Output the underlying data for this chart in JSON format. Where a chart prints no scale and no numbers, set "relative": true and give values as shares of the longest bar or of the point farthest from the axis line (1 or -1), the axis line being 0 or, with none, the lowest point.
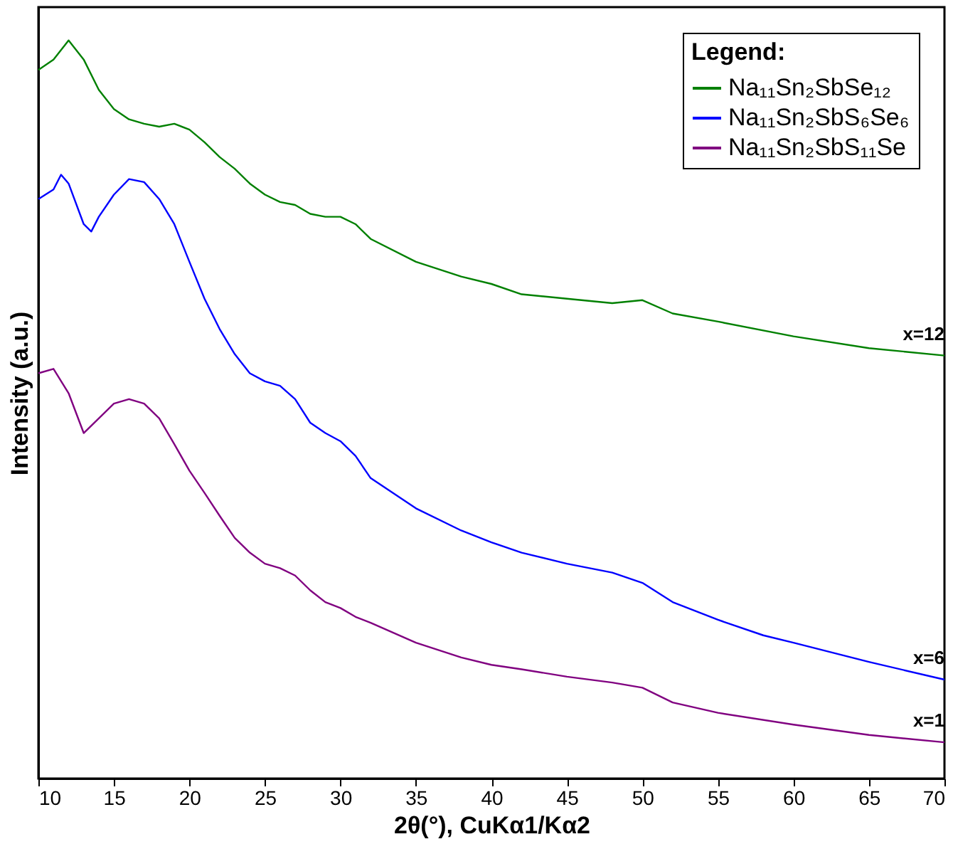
{
  "chart_data": {
    "type": "line",
    "relative": true,
    "xlabel": "2θ(°), CuKα1/Kα2",
    "ylabel": "Intensity (a.u.)",
    "legend_title": "Legend:",
    "legend": "top right",
    "grid": false,
    "tick_labels": "x",
    "marker": "none",
    "line_style": "solid",
    "xlim": [
      10,
      70
    ],
    "xticks": [
      10,
      15,
      20,
      25,
      30,
      35,
      40,
      45,
      50,
      55,
      60,
      65,
      70
    ],
    "series": [
      {
        "name": "Na₁₁Sn₂SbSe₁₂",
        "color": "#008000",
        "x": [
          10,
          11,
          12,
          13,
          14,
          15,
          16,
          17,
          18,
          19,
          20,
          21,
          22,
          23,
          24,
          25,
          26,
          27,
          28,
          29,
          30,
          31,
          32,
          35,
          38,
          40,
          42,
          45,
          48,
          50,
          52,
          55,
          60,
          65,
          70
        ],
        "values": [
          0.96,
          0.974,
          1.0,
          0.974,
          0.933,
          0.907,
          0.893,
          0.887,
          0.883,
          0.887,
          0.879,
          0.862,
          0.842,
          0.826,
          0.806,
          0.791,
          0.781,
          0.777,
          0.765,
          0.761,
          0.761,
          0.751,
          0.731,
          0.7,
          0.68,
          0.67,
          0.656,
          0.65,
          0.644,
          0.648,
          0.63,
          0.619,
          0.599,
          0.583,
          0.573
        ]
      },
      {
        "name": "Na₁₁Sn₂SbS₆Se₆",
        "color": "#0000ff",
        "x": [
          10,
          11,
          11.5,
          12,
          13,
          13.5,
          14,
          15,
          16,
          17,
          18,
          19,
          20,
          21,
          22,
          23,
          24,
          25,
          26,
          27,
          28,
          29,
          30,
          31,
          32,
          35,
          38,
          40,
          42,
          45,
          48,
          50,
          52,
          55,
          58,
          60,
          65,
          70
        ],
        "values": [
          0.785,
          0.798,
          0.818,
          0.806,
          0.751,
          0.741,
          0.761,
          0.791,
          0.812,
          0.808,
          0.785,
          0.751,
          0.7,
          0.65,
          0.609,
          0.575,
          0.549,
          0.538,
          0.532,
          0.514,
          0.482,
          0.468,
          0.457,
          0.437,
          0.407,
          0.366,
          0.336,
          0.32,
          0.306,
          0.291,
          0.279,
          0.265,
          0.239,
          0.215,
          0.194,
          0.184,
          0.158,
          0.134
        ]
      },
      {
        "name": "Na₁₁Sn₂SbS₁₁Se",
        "color": "#800080",
        "x": [
          10,
          11,
          12,
          13,
          14,
          15,
          16,
          17,
          18,
          19,
          20,
          21,
          22,
          23,
          24,
          25,
          26,
          27,
          28,
          29,
          30,
          31,
          32,
          35,
          38,
          40,
          42,
          45,
          48,
          50,
          52,
          55,
          60,
          65,
          70
        ],
        "values": [
          0.549,
          0.555,
          0.522,
          0.468,
          0.488,
          0.508,
          0.514,
          0.508,
          0.488,
          0.453,
          0.417,
          0.387,
          0.356,
          0.326,
          0.306,
          0.291,
          0.285,
          0.275,
          0.255,
          0.239,
          0.231,
          0.219,
          0.211,
          0.184,
          0.164,
          0.154,
          0.148,
          0.138,
          0.13,
          0.123,
          0.103,
          0.089,
          0.073,
          0.059,
          0.049
        ]
      }
    ],
    "annotations": [
      "x=12",
      "x=6",
      "x=1"
    ]
  }
}
